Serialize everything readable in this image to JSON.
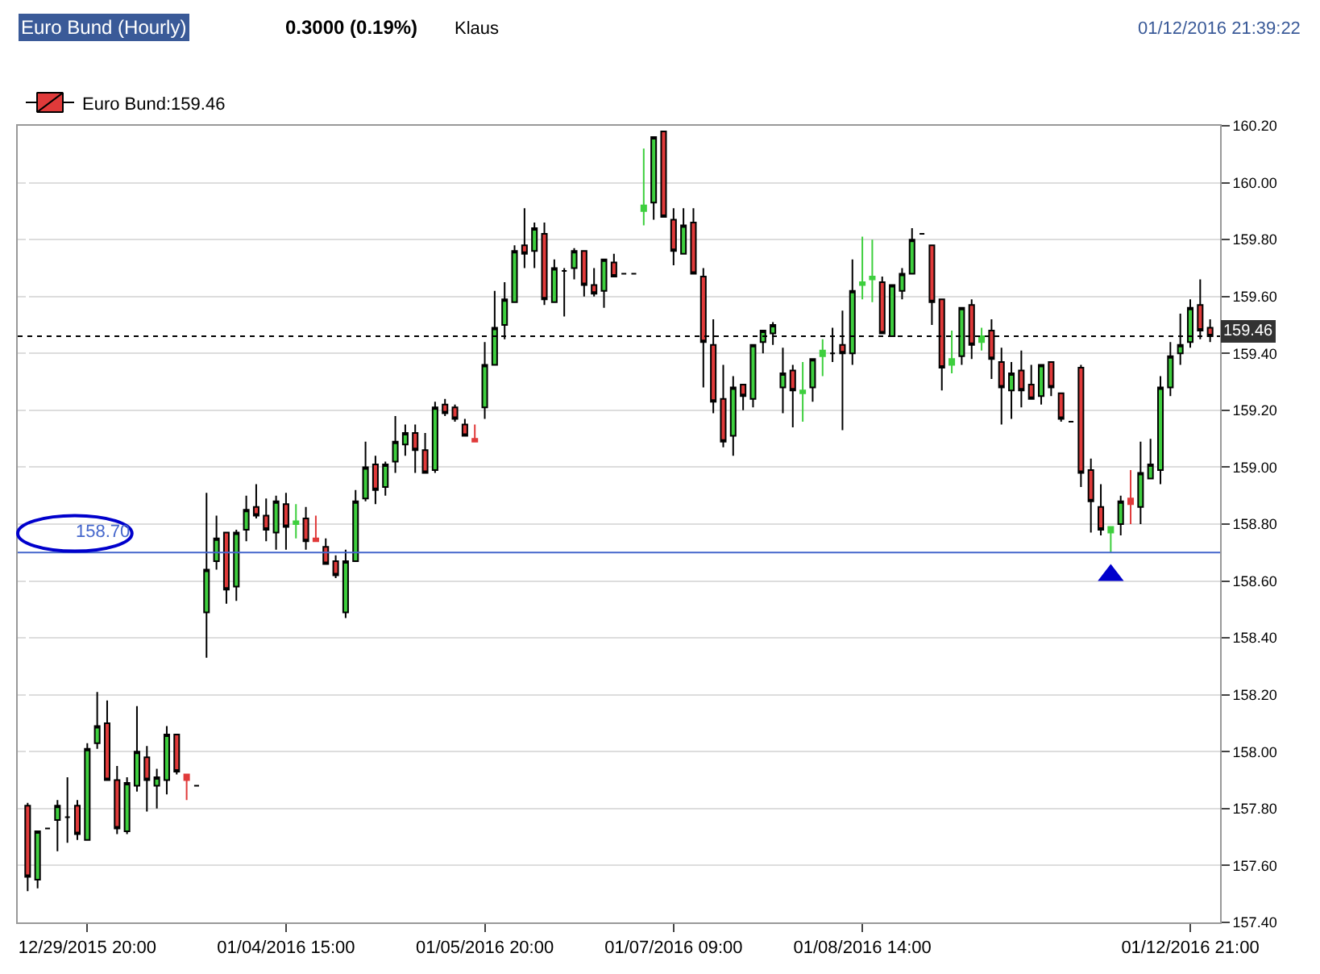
{
  "chart_data": {
    "type": "candlestick",
    "title": "Euro Bund (Hourly)",
    "subtitle": "0.3000 (0.19%)",
    "annotations": [
      "Klaus",
      "01/12/2016 21:39:22"
    ],
    "categories": [
      null,
      null,
      null,
      null,
      null,
      null,
      "12/29/2015 20:00",
      null,
      null,
      null,
      null,
      null,
      null,
      null,
      null,
      null,
      null,
      null,
      null,
      null,
      null,
      null,
      null,
      null,
      null,
      null,
      "01/04/2016 15:00",
      null,
      null,
      null,
      null,
      null,
      null,
      null,
      null,
      null,
      null,
      null,
      null,
      null,
      null,
      null,
      null,
      null,
      null,
      null,
      "01/05/2016 20:00",
      null,
      null,
      null,
      null,
      null,
      null,
      null,
      null,
      null,
      null,
      null,
      null,
      null,
      null,
      null,
      null,
      null,
      null,
      "01/07/2016 09:00",
      null,
      null,
      null,
      null,
      null,
      null,
      null,
      null,
      null,
      null,
      null,
      null,
      null,
      null,
      null,
      null,
      null,
      null,
      "01/08/2016 14:00",
      null,
      null,
      null,
      null,
      null,
      null,
      null,
      null,
      null,
      null,
      null,
      null,
      null,
      null,
      null,
      null,
      null,
      null,
      null,
      null,
      null,
      null,
      null,
      null,
      null,
      null,
      null,
      null,
      null,
      null,
      null,
      null,
      "01/12/2016 21:00",
      null,
      null
    ],
    "series": [
      {
        "name": "Euro Bund:159.46",
        "ohlc": [
          [
            157.81,
            157.82,
            157.51,
            157.56
          ],
          [
            157.55,
            157.72,
            157.52,
            157.72
          ],
          [
            157.73,
            157.73,
            157.73,
            157.73
          ],
          [
            157.76,
            157.83,
            157.65,
            157.81
          ],
          [
            157.77,
            157.91,
            157.68,
            157.77
          ],
          [
            157.81,
            157.83,
            157.69,
            157.71
          ],
          [
            157.69,
            158.03,
            157.69,
            158.01
          ],
          [
            158.03,
            158.21,
            158.01,
            158.09
          ],
          [
            158.1,
            158.18,
            157.9,
            157.9
          ],
          [
            157.9,
            157.95,
            157.71,
            157.73
          ],
          [
            157.72,
            157.91,
            157.71,
            157.89
          ],
          [
            157.88,
            158.16,
            157.86,
            158.0
          ],
          [
            157.98,
            158.02,
            157.79,
            157.9
          ],
          [
            157.88,
            157.94,
            157.8,
            157.91
          ],
          [
            157.9,
            158.09,
            157.85,
            158.06
          ],
          [
            158.06,
            158.06,
            157.92,
            157.93
          ],
          [
            157.92,
            157.92,
            157.83,
            157.9
          ],
          [
            157.88,
            157.88,
            157.88,
            157.88
          ],
          [
            158.49,
            158.91,
            158.33,
            158.64
          ],
          [
            158.67,
            158.83,
            158.64,
            158.75
          ],
          [
            158.77,
            158.77,
            158.52,
            158.57
          ],
          [
            158.58,
            158.78,
            158.53,
            158.77
          ],
          [
            158.78,
            158.9,
            158.74,
            158.85
          ],
          [
            158.86,
            158.94,
            158.82,
            158.83
          ],
          [
            158.83,
            158.89,
            158.74,
            158.78
          ],
          [
            158.77,
            158.9,
            158.71,
            158.88
          ],
          [
            158.87,
            158.91,
            158.71,
            158.79
          ],
          [
            158.8,
            158.87,
            158.75,
            158.81
          ],
          [
            158.82,
            158.86,
            158.71,
            158.74
          ],
          [
            158.75,
            158.83,
            158.74,
            158.74
          ],
          [
            158.72,
            158.75,
            158.66,
            158.66
          ],
          [
            158.67,
            158.69,
            158.61,
            158.62
          ],
          [
            158.49,
            158.71,
            158.47,
            158.67
          ],
          [
            158.67,
            158.92,
            158.67,
            158.88
          ],
          [
            158.89,
            159.09,
            158.88,
            159.0
          ],
          [
            159.01,
            159.04,
            158.87,
            158.92
          ],
          [
            158.93,
            159.02,
            158.9,
            159.01
          ],
          [
            159.02,
            159.18,
            158.98,
            159.09
          ],
          [
            159.08,
            159.15,
            159.04,
            159.12
          ],
          [
            159.12,
            159.15,
            158.98,
            159.06
          ],
          [
            159.06,
            159.12,
            158.98,
            158.98
          ],
          [
            158.99,
            159.23,
            158.98,
            159.21
          ],
          [
            159.22,
            159.24,
            159.18,
            159.19
          ],
          [
            159.21,
            159.22,
            159.16,
            159.17
          ],
          [
            159.15,
            159.17,
            159.11,
            159.11
          ],
          [
            159.1,
            159.15,
            159.09,
            159.09
          ],
          [
            159.21,
            159.44,
            159.17,
            159.36
          ],
          [
            159.36,
            159.62,
            159.36,
            159.49
          ],
          [
            159.5,
            159.65,
            159.45,
            159.59
          ],
          [
            159.58,
            159.78,
            159.58,
            159.76
          ],
          [
            159.78,
            159.91,
            159.7,
            159.75
          ],
          [
            159.76,
            159.86,
            159.7,
            159.84
          ],
          [
            159.82,
            159.86,
            159.57,
            159.59
          ],
          [
            159.58,
            159.73,
            159.58,
            159.7
          ],
          [
            159.69,
            159.7,
            159.53,
            159.69
          ],
          [
            159.7,
            159.77,
            159.66,
            159.76
          ],
          [
            159.76,
            159.76,
            159.6,
            159.64
          ],
          [
            159.64,
            159.7,
            159.6,
            159.61
          ],
          [
            159.62,
            159.73,
            159.56,
            159.73
          ],
          [
            159.72,
            159.75,
            159.67,
            159.67
          ],
          [
            159.68,
            159.68,
            159.68,
            159.68
          ],
          [
            159.68,
            159.68,
            159.68,
            159.68
          ],
          [
            159.9,
            160.12,
            159.85,
            159.92
          ],
          [
            159.93,
            160.16,
            159.87,
            160.16
          ],
          [
            160.18,
            160.18,
            159.88,
            159.88
          ],
          [
            159.87,
            159.91,
            159.71,
            159.76
          ],
          [
            159.75,
            159.91,
            159.75,
            159.85
          ],
          [
            159.86,
            159.91,
            159.68,
            159.68
          ],
          [
            159.67,
            159.7,
            159.28,
            159.44
          ],
          [
            159.43,
            159.52,
            159.19,
            159.23
          ],
          [
            159.24,
            159.36,
            159.07,
            159.09
          ],
          [
            159.11,
            159.32,
            159.04,
            159.28
          ],
          [
            159.29,
            159.29,
            159.2,
            159.25
          ],
          [
            159.24,
            159.43,
            159.21,
            159.43
          ],
          [
            159.44,
            159.48,
            159.4,
            159.48
          ],
          [
            159.47,
            159.51,
            159.43,
            159.5
          ],
          [
            159.28,
            159.42,
            159.19,
            159.33
          ],
          [
            159.34,
            159.36,
            159.14,
            159.27
          ],
          [
            159.26,
            159.37,
            159.16,
            159.27
          ],
          [
            159.28,
            159.38,
            159.23,
            159.38
          ],
          [
            159.39,
            159.45,
            159.32,
            159.41
          ],
          [
            159.4,
            159.49,
            159.37,
            159.4
          ],
          [
            159.43,
            159.55,
            159.13,
            159.4
          ],
          [
            159.4,
            159.73,
            159.36,
            159.62
          ],
          [
            159.64,
            159.81,
            159.59,
            159.65
          ],
          [
            159.66,
            159.8,
            159.58,
            159.67
          ],
          [
            159.65,
            159.67,
            159.47,
            159.47
          ],
          [
            159.46,
            159.64,
            159.46,
            159.64
          ],
          [
            159.62,
            159.7,
            159.59,
            159.68
          ],
          [
            159.68,
            159.84,
            159.68,
            159.8
          ],
          [
            159.82,
            159.82,
            159.82,
            159.82
          ],
          [
            159.78,
            159.78,
            159.5,
            159.58
          ],
          [
            159.59,
            159.59,
            159.27,
            159.35
          ],
          [
            159.36,
            159.48,
            159.33,
            159.38
          ],
          [
            159.39,
            159.56,
            159.36,
            159.56
          ],
          [
            159.57,
            159.59,
            159.38,
            159.43
          ],
          [
            159.44,
            159.49,
            159.41,
            159.46
          ],
          [
            159.48,
            159.52,
            159.31,
            159.38
          ],
          [
            159.37,
            159.42,
            159.15,
            159.28
          ],
          [
            159.27,
            159.37,
            159.17,
            159.33
          ],
          [
            159.34,
            159.41,
            159.21,
            159.27
          ],
          [
            159.29,
            159.36,
            159.24,
            159.24
          ],
          [
            159.25,
            159.36,
            159.22,
            159.36
          ],
          [
            159.37,
            159.37,
            159.25,
            159.28
          ],
          [
            159.26,
            159.26,
            159.16,
            159.17
          ],
          [
            159.16,
            159.16,
            159.16,
            159.16
          ],
          [
            159.35,
            159.36,
            158.93,
            158.98
          ],
          [
            158.99,
            159.03,
            158.77,
            158.88
          ],
          [
            158.86,
            158.94,
            158.76,
            158.78
          ],
          [
            158.77,
            158.79,
            158.7,
            158.79
          ],
          [
            158.8,
            158.9,
            158.76,
            158.88
          ],
          [
            158.89,
            158.99,
            158.8,
            158.87
          ],
          [
            158.86,
            159.09,
            158.8,
            158.98
          ],
          [
            158.96,
            159.1,
            158.96,
            159.01
          ],
          [
            158.99,
            159.32,
            158.94,
            159.28
          ],
          [
            159.28,
            159.44,
            159.25,
            159.39
          ],
          [
            159.4,
            159.54,
            159.36,
            159.43
          ],
          [
            159.44,
            159.59,
            159.42,
            159.56
          ],
          [
            159.57,
            159.66,
            159.45,
            159.48
          ],
          [
            159.49,
            159.52,
            159.44,
            159.46
          ]
        ],
        "colors": [
          "#e03a3a",
          "#3ecf3e",
          "#000000",
          "#3ecf3e",
          "#000000",
          "#e03a3a",
          "#3ecf3e",
          "#3ecf3e",
          "#e03a3a",
          "#e03a3a",
          "#3ecf3e",
          "#3ecf3e",
          "#e03a3a",
          "#3ecf3e",
          "#3ecf3e",
          "#e03a3a",
          "#e03a3a",
          "#000000",
          "#3ecf3e",
          "#3ecf3e",
          "#e03a3a",
          "#3ecf3e",
          "#3ecf3e",
          "#e03a3a",
          "#e03a3a",
          "#3ecf3e",
          "#e03a3a",
          "#3ecf3e",
          "#e03a3a",
          "#e03a3a",
          "#e03a3a",
          "#e03a3a",
          "#3ecf3e",
          "#3ecf3e",
          "#3ecf3e",
          "#e03a3a",
          "#3ecf3e",
          "#3ecf3e",
          "#3ecf3e",
          "#e03a3a",
          "#e03a3a",
          "#3ecf3e",
          "#e03a3a",
          "#e03a3a",
          "#e03a3a",
          "#e03a3a",
          "#3ecf3e",
          "#3ecf3e",
          "#3ecf3e",
          "#3ecf3e",
          "#e03a3a",
          "#3ecf3e",
          "#e03a3a",
          "#3ecf3e",
          "#000000",
          "#3ecf3e",
          "#e03a3a",
          "#e03a3a",
          "#3ecf3e",
          "#e03a3a",
          "#000000",
          "#000000",
          "#3ecf3e",
          "#3ecf3e",
          "#e03a3a",
          "#e03a3a",
          "#3ecf3e",
          "#e03a3a",
          "#e03a3a",
          "#e03a3a",
          "#e03a3a",
          "#3ecf3e",
          "#e03a3a",
          "#3ecf3e",
          "#3ecf3e",
          "#3ecf3e",
          "#3ecf3e",
          "#e03a3a",
          "#3ecf3e",
          "#3ecf3e",
          "#3ecf3e",
          "#000000",
          "#e03a3a",
          "#3ecf3e",
          "#3ecf3e",
          "#3ecf3e",
          "#e03a3a",
          "#3ecf3e",
          "#3ecf3e",
          "#3ecf3e",
          "#000000",
          "#e03a3a",
          "#e03a3a",
          "#3ecf3e",
          "#3ecf3e",
          "#e03a3a",
          "#3ecf3e",
          "#e03a3a",
          "#e03a3a",
          "#3ecf3e",
          "#e03a3a",
          "#e03a3a",
          "#3ecf3e",
          "#e03a3a",
          "#e03a3a",
          "#000000",
          "#e03a3a",
          "#e03a3a",
          "#e03a3a",
          "#3ecf3e",
          "#3ecf3e",
          "#e03a3a",
          "#3ecf3e",
          "#3ecf3e",
          "#3ecf3e",
          "#3ecf3e",
          "#3ecf3e",
          "#3ecf3e",
          "#e03a3a",
          "#e03a3a"
        ]
      },
      {
        "type": "scatter",
        "marker": "triangle",
        "color": "#0000cc",
        "values": [
          null,
          null,
          null,
          null,
          null,
          null,
          null,
          null,
          null,
          null,
          null,
          null,
          null,
          null,
          null,
          null,
          null,
          null,
          null,
          null,
          null,
          null,
          null,
          null,
          null,
          null,
          null,
          null,
          null,
          null,
          null,
          null,
          null,
          null,
          null,
          null,
          null,
          null,
          null,
          null,
          null,
          null,
          null,
          null,
          null,
          null,
          null,
          null,
          null,
          null,
          null,
          null,
          null,
          null,
          null,
          null,
          null,
          null,
          null,
          null,
          null,
          null,
          null,
          null,
          null,
          null,
          null,
          null,
          null,
          null,
          null,
          null,
          null,
          null,
          null,
          null,
          null,
          null,
          null,
          null,
          null,
          null,
          null,
          null,
          null,
          null,
          null,
          null,
          null,
          null,
          null,
          null,
          null,
          null,
          null,
          null,
          null,
          null,
          null,
          null,
          null,
          null,
          null,
          null,
          null,
          null,
          null,
          null,
          null,
          158.62,
          null,
          null,
          null,
          null,
          null,
          null,
          null,
          null,
          null,
          null
        ]
      }
    ],
    "ylim": [
      157.4,
      160.2
    ],
    "yticks": [
      {
        "value": 157.4,
        "label": "157.40"
      },
      {
        "value": 157.6,
        "label": "157.60"
      },
      {
        "value": 157.8,
        "label": "157.80"
      },
      {
        "value": 158.0,
        "label": "158.00"
      },
      {
        "value": 158.2,
        "label": "158.20"
      },
      {
        "value": 158.4,
        "label": "158.40"
      },
      {
        "value": 158.6,
        "label": "158.60"
      },
      {
        "value": 158.8,
        "label": "158.80"
      },
      {
        "value": 159.0,
        "label": "159.00"
      },
      {
        "value": 159.2,
        "label": "159.20"
      },
      {
        "value": 159.4,
        "label": "159.40"
      },
      {
        "value": 159.6,
        "label": "159.60"
      },
      {
        "value": 159.8,
        "label": "159.80"
      },
      {
        "value": 160.0,
        "label": "160.00"
      },
      {
        "value": 160.2,
        "label": "160.20"
      }
    ],
    "ref_lines": [
      {
        "axis": "y",
        "value": 158.7,
        "label": "158.70",
        "color": "#4466cc",
        "line_style": "solid"
      },
      {
        "axis": "y",
        "value": 159.46,
        "label": "159.46",
        "color": "#000000",
        "line_style": "dotted"
      }
    ],
    "grid": "y",
    "legend": "top left"
  }
}
